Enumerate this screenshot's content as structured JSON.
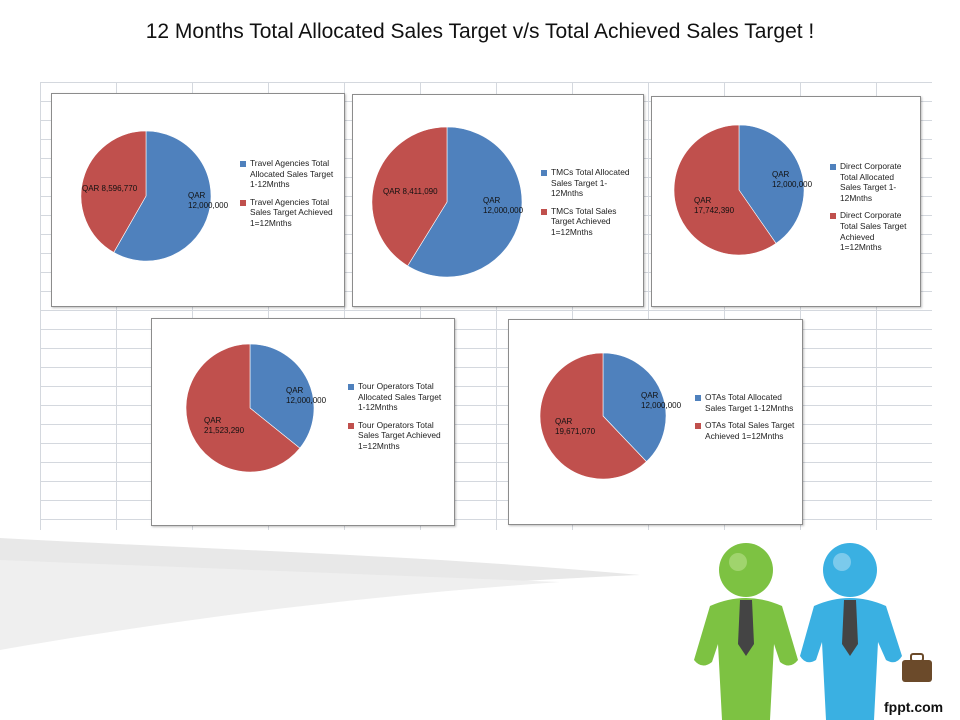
{
  "title": "12 Months Total Allocated Sales Target v/s Total Achieved Sales Target !",
  "logo_text": "fppt.com",
  "colors": {
    "allocated": "#4F81BD",
    "achieved": "#C0504D",
    "person_green": "#7dc242",
    "person_blue": "#3ab0e2"
  },
  "chart_data": [
    {
      "type": "pie",
      "series": [
        {
          "name": "Travel Agencies Total Allocated Sales Target 1-12Mnths",
          "value": 12000000,
          "label_lines": [
            "QAR",
            "12,000,000"
          ]
        },
        {
          "name": "Travel Agencies Total Sales Target Achieved 1=12Mnths",
          "value": 8596770,
          "label_lines": [
            "QAR 8,596,770"
          ]
        }
      ]
    },
    {
      "type": "pie",
      "series": [
        {
          "name": "TMCs Total Allocated Sales Target 1-12Mnths",
          "value": 12000000,
          "label_lines": [
            "QAR",
            "12,000,000"
          ]
        },
        {
          "name": "TMCs Total Sales Target Achieved 1=12Mnths",
          "value": 8411090,
          "label_lines": [
            "QAR 8,411,090"
          ]
        }
      ]
    },
    {
      "type": "pie",
      "series": [
        {
          "name": "Direct Corporate Total Allocated Sales Target 1-12Mnths",
          "value": 12000000,
          "label_lines": [
            "QAR",
            "12,000,000"
          ]
        },
        {
          "name": "Direct Corporate Total Sales Target Achieved 1=12Mnths",
          "value": 17742390,
          "label_lines": [
            "QAR",
            "17,742,390"
          ]
        }
      ]
    },
    {
      "type": "pie",
      "series": [
        {
          "name": "Tour Operators Total Allocated Sales Target 1-12Mnths",
          "value": 12000000,
          "label_lines": [
            "QAR",
            "12,000,000"
          ]
        },
        {
          "name": "Tour Operators Total Sales Target Achieved 1=12Mnths",
          "value": 21523290,
          "label_lines": [
            "QAR",
            "21,523,290"
          ]
        }
      ]
    },
    {
      "type": "pie",
      "series": [
        {
          "name": "OTAs Total Allocated Sales Target 1-12Mnths",
          "value": 12000000,
          "label_lines": [
            "QAR",
            "12,000,000"
          ]
        },
        {
          "name": "OTAs Total Sales Target Achieved 1=12Mnths",
          "value": 19671070,
          "label_lines": [
            "QAR",
            "19,671,070"
          ]
        }
      ]
    }
  ]
}
